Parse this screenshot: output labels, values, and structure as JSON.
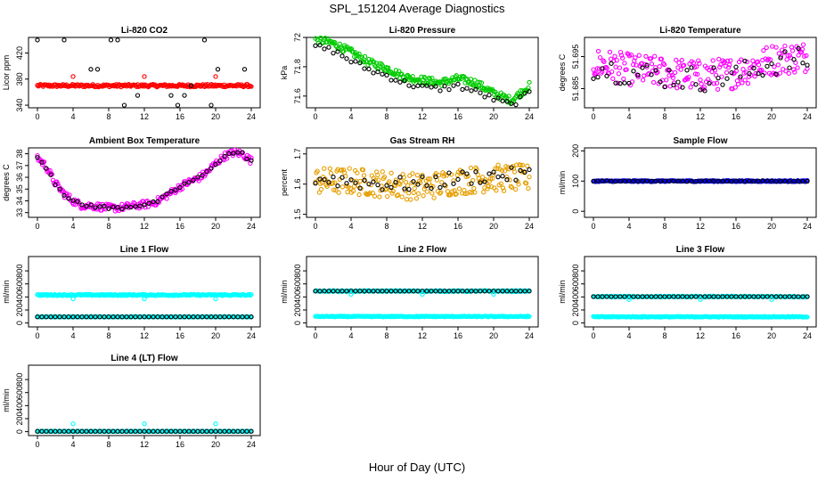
{
  "page": {
    "title": "SPL_151204  Average Diagnostics",
    "xlabel": "Hour of Day (UTC)"
  },
  "chart_data": [
    {
      "type": "scatter",
      "title": "Li-820 CO2",
      "ylabel": "Licor ppm",
      "xlim": [
        0,
        24
      ],
      "ylim": [
        336,
        444
      ],
      "xticks": [
        0,
        4,
        8,
        12,
        16,
        20,
        24
      ],
      "yticks": [
        340,
        380,
        420
      ],
      "series": [
        {
          "color": "#ff0000",
          "marker": "circle",
          "density": "dense",
          "x": [
            0,
            24
          ],
          "y": [
            370,
            370
          ],
          "spread": 2
        },
        {
          "color": "#000000",
          "marker": "circle",
          "density": "sparse",
          "levels": [
            340,
            355,
            370,
            395,
            440
          ],
          "step": 0.75
        },
        {
          "color": "#ff0000",
          "marker": "circle",
          "x": [
            4,
            12,
            20
          ],
          "y": [
            384,
            384,
            384
          ]
        }
      ]
    },
    {
      "type": "scatter",
      "title": "Li-820 Pressure",
      "ylabel": "kPa",
      "xlim": [
        0,
        24
      ],
      "ylim": [
        71.52,
        72.0
      ],
      "xticks": [
        0,
        4,
        8,
        12,
        16,
        20,
        24
      ],
      "yticks": [
        71.6,
        71.8,
        72.0
      ],
      "series": [
        {
          "color": "#00cc00",
          "marker": "circle",
          "density": "dense",
          "x": [
            0,
            2,
            4,
            6,
            8,
            10,
            12,
            14,
            16,
            18,
            20,
            22,
            24
          ],
          "y": [
            71.99,
            71.96,
            71.9,
            71.83,
            71.79,
            71.73,
            71.71,
            71.69,
            71.72,
            71.69,
            71.62,
            71.57,
            71.67
          ],
          "spread": 0.025
        },
        {
          "color": "#000000",
          "marker": "circle",
          "density": "sparse",
          "x": [
            0,
            2,
            4,
            6,
            8,
            10,
            12,
            14,
            16,
            18,
            20,
            22,
            24
          ],
          "y": [
            71.94,
            71.91,
            71.84,
            71.78,
            71.74,
            71.69,
            71.66,
            71.65,
            71.67,
            71.63,
            71.58,
            71.54,
            71.62
          ],
          "spread": 0.02
        }
      ]
    },
    {
      "type": "scatter",
      "title": "Li-820 Temperature",
      "ylabel": "degrees C",
      "xlim": [
        0,
        24
      ],
      "ylim": [
        51.679,
        51.701
      ],
      "xticks": [
        0,
        4,
        8,
        12,
        16,
        20,
        24
      ],
      "yticks": [
        51.685,
        51.695
      ],
      "series": [
        {
          "color": "#ff00ff",
          "marker": "circle",
          "density": "dense",
          "x": [
            0,
            4,
            8,
            12,
            16,
            20,
            24
          ],
          "y": [
            51.693,
            51.691,
            51.69,
            51.689,
            51.69,
            51.694,
            51.695
          ],
          "spread": 0.005
        },
        {
          "color": "#000000",
          "marker": "circle",
          "density": "sparse",
          "x": [
            0,
            4,
            8,
            12,
            16,
            20,
            24
          ],
          "y": [
            51.692,
            51.69,
            51.689,
            51.688,
            51.689,
            51.693,
            51.694
          ],
          "spread": 0.004
        }
      ]
    },
    {
      "type": "scatter",
      "title": "Ambient Box Temperature",
      "ylabel": "degrees C",
      "xlim": [
        0,
        24
      ],
      "ylim": [
        32.6,
        38.5
      ],
      "xticks": [
        0,
        4,
        8,
        12,
        16,
        20,
        24
      ],
      "yticks": [
        33.0,
        34.0,
        35.0,
        36.0,
        37.0,
        38.0
      ],
      "series": [
        {
          "color": "#ff00ff",
          "marker": "circle",
          "density": "dense",
          "x": [
            0,
            1,
            2,
            3,
            4,
            5,
            6,
            7,
            8,
            9,
            10,
            11,
            12,
            13,
            14,
            15,
            16,
            17,
            18,
            19,
            20,
            21,
            22,
            23,
            24
          ],
          "y": [
            37.7,
            36.9,
            35.5,
            34.6,
            34.0,
            33.6,
            33.6,
            33.5,
            33.4,
            33.4,
            33.5,
            33.6,
            33.7,
            33.8,
            34.2,
            34.7,
            35.2,
            35.6,
            35.9,
            36.4,
            37.2,
            37.8,
            38.1,
            38.0,
            37.4
          ],
          "spread": 0.3
        },
        {
          "color": "#000000",
          "marker": "circle",
          "density": "sparse",
          "x": [
            0,
            1,
            2,
            3,
            4,
            5,
            6,
            7,
            8,
            9,
            10,
            11,
            12,
            13,
            14,
            15,
            16,
            17,
            18,
            19,
            20,
            21,
            22,
            23,
            24
          ],
          "y": [
            37.7,
            36.9,
            35.5,
            34.6,
            34.0,
            33.6,
            33.6,
            33.5,
            33.4,
            33.4,
            33.5,
            33.6,
            33.7,
            33.8,
            34.2,
            34.7,
            35.2,
            35.6,
            35.9,
            36.4,
            37.2,
            37.8,
            38.1,
            38.0,
            37.4
          ],
          "spread": 0.15
        }
      ]
    },
    {
      "type": "scatter",
      "title": "Gas Stream RH",
      "ylabel": "percent",
      "xlim": [
        0,
        24
      ],
      "ylim": [
        1.49,
        1.72
      ],
      "xticks": [
        0,
        4,
        8,
        12,
        16,
        20,
        24
      ],
      "yticks": [
        1.5,
        1.6,
        1.7
      ],
      "series": [
        {
          "color": "#e69f00",
          "marker": "circle",
          "density": "dense",
          "x": [
            0,
            4,
            8,
            12,
            16,
            20,
            24
          ],
          "y": [
            1.61,
            1.61,
            1.6,
            1.59,
            1.61,
            1.62,
            1.62
          ],
          "spread": 0.045
        },
        {
          "color": "#000000",
          "marker": "circle",
          "density": "sparse",
          "x": [
            0,
            4,
            8,
            12,
            16,
            20,
            24
          ],
          "y": [
            1.62,
            1.61,
            1.6,
            1.6,
            1.62,
            1.63,
            1.63
          ],
          "spread": 0.025
        }
      ]
    },
    {
      "type": "scatter",
      "title": "Sample Flow",
      "ylabel": "ml/min",
      "xlim": [
        0,
        24
      ],
      "ylim": [
        -20,
        210
      ],
      "xticks": [
        0,
        4,
        8,
        12,
        16,
        20,
        24
      ],
      "yticks": [
        0,
        100,
        200
      ],
      "series": [
        {
          "color": "#0000ff",
          "marker": "circle",
          "density": "dense",
          "x": [
            0,
            24
          ],
          "y": [
            100,
            100
          ],
          "spread": 2
        },
        {
          "color": "#000000",
          "marker": "circle",
          "density": "sparse",
          "x": [
            0,
            24
          ],
          "y": [
            100,
            100
          ],
          "spread": 1
        }
      ]
    },
    {
      "type": "scatter",
      "title": "Line 1 Flow",
      "ylabel": "ml/min",
      "xlim": [
        0,
        24
      ],
      "ylim": [
        -60,
        1020
      ],
      "xticks": [
        0,
        4,
        8,
        12,
        16,
        20,
        24
      ],
      "yticks": [
        0,
        200,
        400,
        600,
        800
      ],
      "series": [
        {
          "color": "#00ffff",
          "marker": "circle",
          "density": "dense",
          "x": [
            0,
            24
          ],
          "y": [
            430,
            430
          ],
          "spread": 10
        },
        {
          "color": "#00ffff",
          "marker": "circle",
          "x": [
            4,
            12,
            20
          ],
          "y": [
            370,
            370,
            370
          ]
        },
        {
          "color": "#00ffff",
          "marker": "circle",
          "density": "dense",
          "x": [
            0,
            24
          ],
          "y": [
            95,
            95
          ],
          "spread": 4
        },
        {
          "color": "#000000",
          "marker": "circle",
          "density": "sparse",
          "x": [
            0,
            24
          ],
          "y": [
            95,
            95
          ],
          "spread": 0
        }
      ]
    },
    {
      "type": "scatter",
      "title": "Line 2 Flow",
      "ylabel": "ml/min",
      "xlim": [
        0,
        24
      ],
      "ylim": [
        -60,
        1020
      ],
      "xticks": [
        0,
        4,
        8,
        12,
        16,
        20,
        24
      ],
      "yticks": [
        0,
        200,
        400,
        600,
        800
      ],
      "series": [
        {
          "color": "#00ffff",
          "marker": "circle",
          "density": "dense",
          "x": [
            0,
            24
          ],
          "y": [
            490,
            490
          ],
          "spread": 8
        },
        {
          "color": "#000000",
          "marker": "circle",
          "density": "sparse",
          "x": [
            0,
            24
          ],
          "y": [
            490,
            490
          ],
          "spread": 0
        },
        {
          "color": "#00ffff",
          "marker": "circle",
          "x": [
            4,
            12,
            20
          ],
          "y": [
            440,
            440,
            440
          ]
        },
        {
          "color": "#00ffff",
          "marker": "circle",
          "density": "dense",
          "x": [
            0,
            24
          ],
          "y": [
            100,
            100
          ],
          "spread": 6
        }
      ]
    },
    {
      "type": "scatter",
      "title": "Line 3 Flow",
      "ylabel": "ml/min",
      "xlim": [
        0,
        24
      ],
      "ylim": [
        -60,
        1020
      ],
      "xticks": [
        0,
        4,
        8,
        12,
        16,
        20,
        24
      ],
      "yticks": [
        0,
        200,
        400,
        600,
        800
      ],
      "series": [
        {
          "color": "#00ffff",
          "marker": "circle",
          "density": "dense",
          "x": [
            0,
            24
          ],
          "y": [
            405,
            405
          ],
          "spread": 8
        },
        {
          "color": "#000000",
          "marker": "circle",
          "density": "sparse",
          "x": [
            0,
            24
          ],
          "y": [
            405,
            405
          ],
          "spread": 0
        },
        {
          "color": "#00ffff",
          "marker": "circle",
          "x": [
            4,
            12,
            20
          ],
          "y": [
            360,
            360,
            360
          ]
        },
        {
          "color": "#00ffff",
          "marker": "circle",
          "density": "dense",
          "x": [
            0,
            24
          ],
          "y": [
            95,
            95
          ],
          "spread": 6
        }
      ]
    },
    {
      "type": "scatter",
      "title": "Line 4 (LT) Flow",
      "ylabel": "ml/min",
      "xlim": [
        0,
        24
      ],
      "ylim": [
        -60,
        1020
      ],
      "xticks": [
        0,
        4,
        8,
        12,
        16,
        20,
        24
      ],
      "yticks": [
        0,
        200,
        400,
        600,
        800
      ],
      "series": [
        {
          "color": "#00ffff",
          "marker": "circle",
          "density": "dense",
          "x": [
            0,
            24
          ],
          "y": [
            5,
            5
          ],
          "spread": 3
        },
        {
          "color": "#000000",
          "marker": "circle",
          "density": "sparse",
          "x": [
            0,
            24
          ],
          "y": [
            5,
            5
          ],
          "spread": 0
        },
        {
          "color": "#00ffff",
          "marker": "circle",
          "x": [
            4,
            12,
            20
          ],
          "y": [
            120,
            120,
            120
          ]
        }
      ]
    }
  ]
}
